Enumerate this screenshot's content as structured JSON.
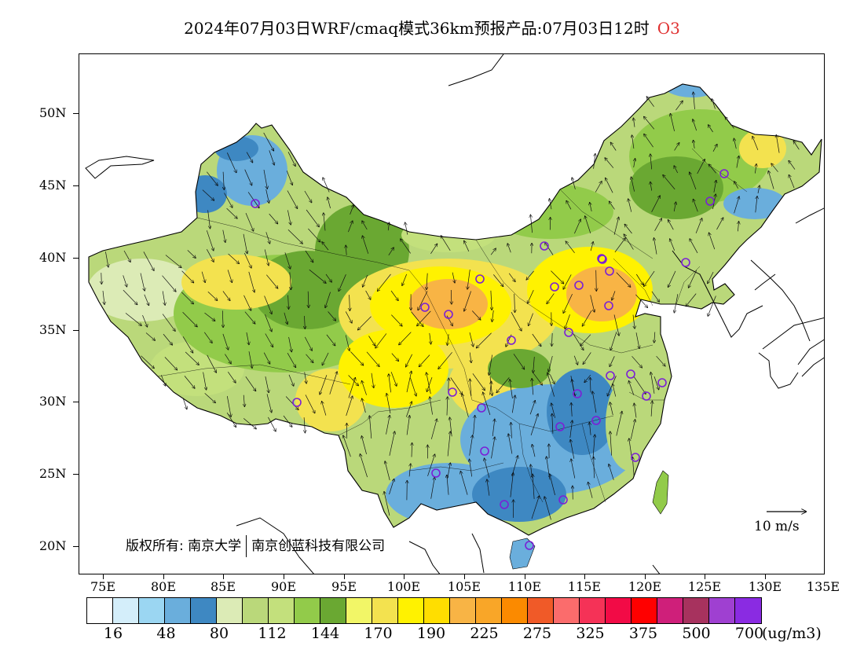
{
  "title": {
    "text": "2024年07月03日WRF/cmaq模式36km预报产品:07月03日12时",
    "pollutant": "O3"
  },
  "axes": {
    "lat_labels": [
      "50N",
      "45N",
      "40N",
      "35N",
      "30N",
      "25N",
      "20N"
    ],
    "lat_values": [
      50,
      45,
      40,
      35,
      30,
      25,
      20
    ],
    "lon_labels": [
      "75E",
      "80E",
      "85E",
      "90E",
      "95E",
      "100E",
      "105E",
      "110E",
      "115E",
      "120E",
      "125E",
      "130E",
      "135E"
    ],
    "lon_values": [
      75,
      80,
      85,
      90,
      95,
      100,
      105,
      110,
      115,
      120,
      125,
      130,
      135
    ],
    "lon_range": [
      73,
      135
    ],
    "lat_range": [
      18,
      54
    ]
  },
  "copyright": {
    "prefix": "版权所有:",
    "org1": "南京大学",
    "org2": "南京创蓝科技有限公司"
  },
  "wind_reference": {
    "label": "10 m/s"
  },
  "colorbar": {
    "colors": [
      "#ffffff",
      "#d4eefa",
      "#9bd6f2",
      "#6aaedc",
      "#3e88c2",
      "#dcebb6",
      "#bad87a",
      "#c3e07c",
      "#92cb4a",
      "#6aa832",
      "#f2f667",
      "#f3e24f",
      "#fff200",
      "#ffde00",
      "#f8b445",
      "#f9a628",
      "#fb8a00",
      "#f05a28",
      "#fb6c6c",
      "#f53257",
      "#f20b46",
      "#ff0000",
      "#cf1f7a",
      "#a7325e",
      "#9f40d1",
      "#8a2be2"
    ],
    "labels": [
      "16",
      "48",
      "80",
      "112",
      "144",
      "170",
      "190",
      "225",
      "275",
      "325",
      "375",
      "500",
      "700"
    ],
    "unit": "(ug/m3)"
  },
  "stations": {
    "marker_color": "#7b1fd6",
    "count": 30
  },
  "map_colors": {
    "ocean": "#ffffff",
    "low_blue": "#6aaedc",
    "green_light": "#bad87a",
    "green_mid": "#92cb4a",
    "green_dark": "#6aa832",
    "yellow": "#fff200",
    "orange": "#f8b445"
  }
}
